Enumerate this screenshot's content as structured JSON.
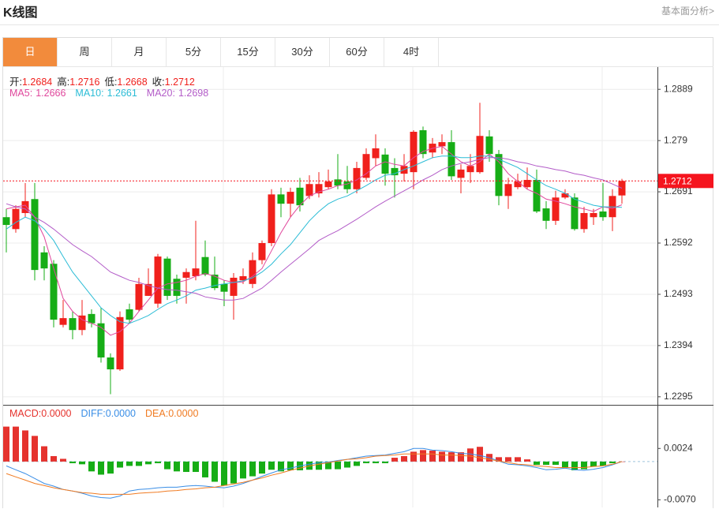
{
  "header": {
    "title": "K线图",
    "link": "基本面分析>"
  },
  "tabs": {
    "items": [
      "日",
      "周",
      "月",
      "5分",
      "15分",
      "30分",
      "60分",
      "4时"
    ],
    "active": 0
  },
  "chart_data": [
    {
      "type": "candlestick",
      "ohlc_labels": [
        "开:",
        "高:",
        "低:",
        "收:"
      ],
      "up_color": "#f0201c",
      "down_color": "#16ad16",
      "open": [
        1.2642,
        1.2619,
        1.265,
        1.2677,
        1.2574,
        1.2552,
        1.2434,
        1.2447,
        1.2424,
        1.2455,
        1.2437,
        1.2371,
        1.2348,
        1.2464,
        1.2463,
        1.249,
        1.2475,
        1.2562,
        1.2523,
        1.2525,
        1.2528,
        1.2565,
        1.2531,
        1.2513,
        1.249,
        1.252,
        1.2513,
        1.2559,
        1.2592,
        1.2686,
        1.2668,
        1.2699,
        1.2683,
        1.2688,
        1.27,
        1.2715,
        1.2711,
        1.2696,
        1.2718,
        1.2756,
        1.2763,
        1.2737,
        1.2726,
        1.2729,
        1.281,
        1.2767,
        1.2779,
        1.2787,
        1.2718,
        1.2729,
        1.2729,
        1.2798,
        1.2764,
        1.2683,
        1.27,
        1.27,
        1.2714,
        1.2659,
        1.2635,
        1.268,
        1.268,
        1.2619,
        1.2642,
        1.2653,
        1.2642,
        1.2684
      ],
      "high": [
        1.2658,
        1.2665,
        1.2708,
        1.2708,
        1.2586,
        1.2559,
        1.2482,
        1.246,
        1.2482,
        1.2464,
        1.2467,
        1.2379,
        1.246,
        1.2475,
        1.2525,
        1.2543,
        1.2571,
        1.2566,
        1.2531,
        1.2543,
        1.2635,
        1.2597,
        1.2566,
        1.252,
        1.2534,
        1.2543,
        1.2574,
        1.2597,
        1.2696,
        1.2699,
        1.2699,
        1.2718,
        1.2723,
        1.2729,
        1.2734,
        1.2764,
        1.2741,
        1.2749,
        1.2775,
        1.2802,
        1.2775,
        1.2756,
        1.2764,
        1.281,
        1.2817,
        1.2795,
        1.2802,
        1.281,
        1.2744,
        1.2764,
        1.2863,
        1.281,
        1.2772,
        1.2718,
        1.2726,
        1.2738,
        1.2734,
        1.2673,
        1.2693,
        1.2696,
        1.2688,
        1.2662,
        1.2658,
        1.2708,
        1.2696,
        1.2716
      ],
      "low": [
        1.2574,
        1.2612,
        1.2642,
        1.252,
        1.252,
        1.2429,
        1.2429,
        1.2406,
        1.2414,
        1.2429,
        1.2361,
        1.23,
        1.2345,
        1.2437,
        1.246,
        1.249,
        1.2467,
        1.2482,
        1.2475,
        1.2475,
        1.252,
        1.2528,
        1.2501,
        1.247,
        1.2444,
        1.2513,
        1.2505,
        1.2551,
        1.2586,
        1.2642,
        1.2642,
        1.2653,
        1.2677,
        1.268,
        1.2696,
        1.2696,
        1.2688,
        1.2688,
        1.2714,
        1.2741,
        1.2703,
        1.268,
        1.2711,
        1.2696,
        1.2756,
        1.2756,
        1.2764,
        1.2714,
        1.2688,
        1.2708,
        1.2726,
        1.2749,
        1.2665,
        1.2658,
        1.2696,
        1.2696,
        1.265,
        1.2619,
        1.2627,
        1.2677,
        1.2616,
        1.2612,
        1.2627,
        1.2635,
        1.2615,
        1.2668
      ],
      "close": [
        1.2627,
        1.2658,
        1.2673,
        1.254,
        1.2543,
        1.2444,
        1.2447,
        1.2424,
        1.2452,
        1.2437,
        1.2371,
        1.2348,
        1.2449,
        1.2444,
        1.2513,
        1.2513,
        1.2566,
        1.249,
        1.249,
        1.2536,
        1.2543,
        1.2531,
        1.2505,
        1.2498,
        1.2525,
        1.2528,
        1.2559,
        1.2592,
        1.2686,
        1.2668,
        1.2691,
        1.2665,
        1.2706,
        1.2706,
        1.2711,
        1.2703,
        1.2696,
        1.2737,
        1.2764,
        1.2775,
        1.2726,
        1.2723,
        1.2741,
        1.2807,
        1.2764,
        1.2784,
        1.2787,
        1.2721,
        1.2734,
        1.2741,
        1.2799,
        1.2764,
        1.2683,
        1.2706,
        1.2711,
        1.2714,
        1.2653,
        1.2635,
        1.268,
        1.2688,
        1.2619,
        1.265,
        1.265,
        1.2642,
        1.2683,
        1.2712
      ],
      "series": [
        {
          "name": "MA5:",
          "color": "#e0479c",
          "values": [
            1.2658,
            1.2662,
            1.2665,
            1.2642,
            1.2604,
            1.2543,
            1.2485,
            1.246,
            1.2444,
            1.2437,
            1.2429,
            1.2414,
            1.2421,
            1.2437,
            1.246,
            1.2482,
            1.2505,
            1.2513,
            1.2516,
            1.252,
            1.2528,
            1.2533,
            1.2528,
            1.252,
            1.2516,
            1.2517,
            1.2528,
            1.2543,
            1.2577,
            1.2612,
            1.2642,
            1.2665,
            1.2683,
            1.2691,
            1.2696,
            1.2703,
            1.2706,
            1.2714,
            1.2726,
            1.2741,
            1.2749,
            1.2744,
            1.2741,
            1.2757,
            1.2769,
            1.2775,
            1.2779,
            1.2764,
            1.2749,
            1.2741,
            1.2749,
            1.2764,
            1.2749,
            1.2726,
            1.2711,
            1.2696,
            1.2688,
            1.2677,
            1.2673,
            1.2668,
            1.2662,
            1.2658,
            1.2653,
            1.2662,
            1.2659,
            1.2666
          ]
        },
        {
          "name": "MA10:",
          "color": "#2bbcd6",
          "values": [
            1.2619,
            1.2632,
            1.2642,
            1.2635,
            1.2619,
            1.2597,
            1.2566,
            1.2536,
            1.2513,
            1.249,
            1.2467,
            1.2452,
            1.244,
            1.2437,
            1.2444,
            1.2452,
            1.2464,
            1.2475,
            1.2482,
            1.249,
            1.2501,
            1.2505,
            1.251,
            1.2513,
            1.2516,
            1.2519,
            1.2525,
            1.2536,
            1.2551,
            1.2571,
            1.2589,
            1.2612,
            1.2635,
            1.2653,
            1.2668,
            1.2677,
            1.2683,
            1.2693,
            1.2703,
            1.2714,
            1.2723,
            1.2726,
            1.2734,
            1.2741,
            1.2749,
            1.2757,
            1.276,
            1.276,
            1.2757,
            1.2757,
            1.276,
            1.276,
            1.2754,
            1.2746,
            1.2738,
            1.2726,
            1.2714,
            1.2703,
            1.2696,
            1.2688,
            1.2677,
            1.2671,
            1.2665,
            1.2662,
            1.2662,
            1.2661
          ]
        },
        {
          "name": "MA20:",
          "color": "#b35cc8",
          "values": [
            1.2668,
            1.2662,
            1.2658,
            1.2642,
            1.2632,
            1.2619,
            1.2604,
            1.2589,
            1.2577,
            1.2566,
            1.2551,
            1.2536,
            1.2528,
            1.252,
            1.2516,
            1.251,
            1.2505,
            1.2502,
            1.2501,
            1.2498,
            1.2495,
            1.2488,
            1.2485,
            1.2482,
            1.2482,
            1.2485,
            1.2495,
            1.2505,
            1.252,
            1.2536,
            1.2551,
            1.2566,
            1.2581,
            1.2597,
            1.2607,
            1.2616,
            1.2627,
            1.2638,
            1.265,
            1.2662,
            1.2673,
            1.2683,
            1.2693,
            1.2703,
            1.2714,
            1.2723,
            1.2734,
            1.2741,
            1.2746,
            1.2749,
            1.2754,
            1.2757,
            1.2757,
            1.2754,
            1.2749,
            1.2746,
            1.2741,
            1.2738,
            1.2734,
            1.2731,
            1.2726,
            1.2723,
            1.2718,
            1.2714,
            1.2706,
            1.2698
          ]
        }
      ],
      "ylim": [
        1.2281,
        1.2932
      ],
      "yticks": [
        1.2889,
        1.279,
        1.2691,
        1.2592,
        1.2493,
        1.2394,
        1.2295
      ],
      "grid": true,
      "price_line_color": "#f5141e"
    },
    {
      "type": "macd",
      "ylim": [
        -0.0084,
        0.0101
      ],
      "yticks": [
        0.0024,
        {
          "value": -0.007,
          "label": "-0.0070"
        }
      ],
      "series": [
        {
          "name": "MACD:",
          "legend_value": "0.0000",
          "color": "#e5322d",
          "down_color": "#16ad16",
          "kind": "bar",
          "values": [
            0.0064,
            0.0064,
            0.0057,
            0.0047,
            0.0028,
            0.001,
            0.0005,
            -0.0003,
            -0.0005,
            -0.0018,
            -0.0024,
            -0.0022,
            -0.0011,
            -0.0008,
            -0.0008,
            -0.0005,
            -0.0003,
            -0.0014,
            -0.0018,
            -0.0019,
            -0.0019,
            -0.0029,
            -0.0037,
            -0.0044,
            -0.004,
            -0.0031,
            -0.0027,
            -0.0022,
            -0.0015,
            -0.0018,
            -0.0016,
            -0.0016,
            -0.0015,
            -0.0015,
            -0.0014,
            -0.0014,
            -0.0011,
            -0.0008,
            -0.0003,
            -0.0003,
            -0.0003,
            0.0007,
            0.001,
            0.0018,
            0.0021,
            0.002,
            0.0018,
            0.0017,
            0.0017,
            0.0024,
            0.0027,
            0.0014,
            0.0008,
            0.0008,
            0.0008,
            0.0004,
            -0.0006,
            -0.0006,
            -0.0006,
            -0.0011,
            -0.0016,
            -0.0014,
            -0.0009,
            -0.0008,
            -0.0003,
            0
          ]
        },
        {
          "name": "DIFF:",
          "legend_value": "0.0000",
          "color": "#3a8ee6",
          "kind": "line",
          "values": [
            -0.0008,
            -0.0015,
            -0.0022,
            -0.0031,
            -0.004,
            -0.0045,
            -0.0051,
            -0.0054,
            -0.0058,
            -0.0063,
            -0.0066,
            -0.0067,
            -0.0063,
            -0.0054,
            -0.0051,
            -0.005,
            -0.0048,
            -0.0047,
            -0.0047,
            -0.0045,
            -0.0044,
            -0.0045,
            -0.0047,
            -0.0048,
            -0.0045,
            -0.004,
            -0.0034,
            -0.0027,
            -0.0021,
            -0.0015,
            -0.0012,
            -0.0008,
            -0.0005,
            -0.0002,
            -0.0001,
            0.0002,
            0.0004,
            0.0007,
            0.001,
            0.0011,
            0.0012,
            0.0015,
            0.0018,
            0.0024,
            0.0024,
            0.0021,
            0.002,
            0.0018,
            0.0015,
            0.0014,
            0.0011,
            0.0007,
            0.0001,
            -0.0005,
            -0.0006,
            -0.0008,
            -0.0011,
            -0.0015,
            -0.0014,
            -0.0012,
            -0.0015,
            -0.0016,
            -0.0014,
            -0.0011,
            -0.0006,
            0
          ]
        },
        {
          "name": "DEA:",
          "legend_value": "0.0000",
          "color": "#f07b22",
          "kind": "line",
          "values": [
            -0.0022,
            -0.0028,
            -0.0034,
            -0.004,
            -0.0044,
            -0.0048,
            -0.0051,
            -0.0054,
            -0.0057,
            -0.0058,
            -0.006,
            -0.006,
            -0.006,
            -0.006,
            -0.0058,
            -0.0057,
            -0.0056,
            -0.0054,
            -0.0053,
            -0.0051,
            -0.005,
            -0.0048,
            -0.0047,
            -0.0044,
            -0.0041,
            -0.0038,
            -0.0034,
            -0.003,
            -0.0025,
            -0.0021,
            -0.0016,
            -0.0012,
            -0.0008,
            -0.0005,
            -0.0002,
            0.0001,
            0.0004,
            0.0005,
            0.0007,
            0.001,
            0.0011,
            0.0012,
            0.0014,
            0.0014,
            0.0014,
            0.0014,
            0.0012,
            0.0012,
            0.0011,
            0.001,
            0.0007,
            0.0004,
            0.0001,
            -0.0002,
            -0.0005,
            -0.0006,
            -0.0008,
            -0.0009,
            -0.0011,
            -0.0011,
            -0.0011,
            -0.0011,
            -0.0009,
            -0.0008,
            -0.0005,
            0
          ]
        }
      ]
    }
  ]
}
